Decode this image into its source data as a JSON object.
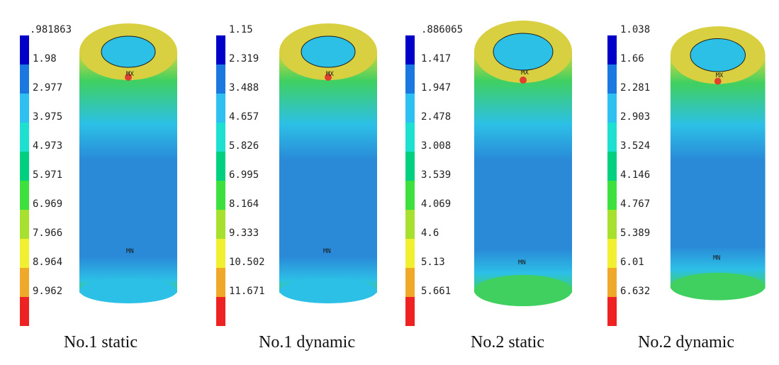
{
  "colors": {
    "scale": [
      "#0000c8",
      "#1a78e0",
      "#2ec0f0",
      "#1ee0d0",
      "#00d080",
      "#3ee03e",
      "#a8e030",
      "#f0f030",
      "#f0a828",
      "#ee2222"
    ],
    "cyl_body": "#2a8ad8",
    "cyl_light": "#2cc0e6",
    "cyl_green": "#40d060",
    "cyl_yellow": "#d8d840",
    "cyl_red": "#e04030"
  },
  "panels": [
    {
      "caption": "No.1 static",
      "labels": [
        ".981863",
        "1.98",
        "2.977",
        "3.975",
        "4.973",
        "5.971",
        "6.969",
        "7.966",
        "8.964",
        "9.962"
      ],
      "max_marker": "MX",
      "min_marker": "MN"
    },
    {
      "caption": "No.1 dynamic",
      "labels": [
        "1.15",
        "2.319",
        "3.488",
        "4.657",
        "5.826",
        "6.995",
        "8.164",
        "9.333",
        "10.502",
        "11.671"
      ],
      "max_marker": "MX",
      "min_marker": "MN"
    },
    {
      "caption": "No.2 static",
      "labels": [
        ".886065",
        "1.417",
        "1.947",
        "2.478",
        "3.008",
        "3.539",
        "4.069",
        "4.6",
        "5.13",
        "5.661"
      ],
      "max_marker": "MX",
      "min_marker": "MN"
    },
    {
      "caption": "No.2 dynamic",
      "labels": [
        "1.038",
        "1.66",
        "2.281",
        "2.903",
        "3.524",
        "4.146",
        "4.767",
        "5.389",
        "6.01",
        "6.632"
      ],
      "max_marker": "MX",
      "min_marker": "MN"
    }
  ]
}
